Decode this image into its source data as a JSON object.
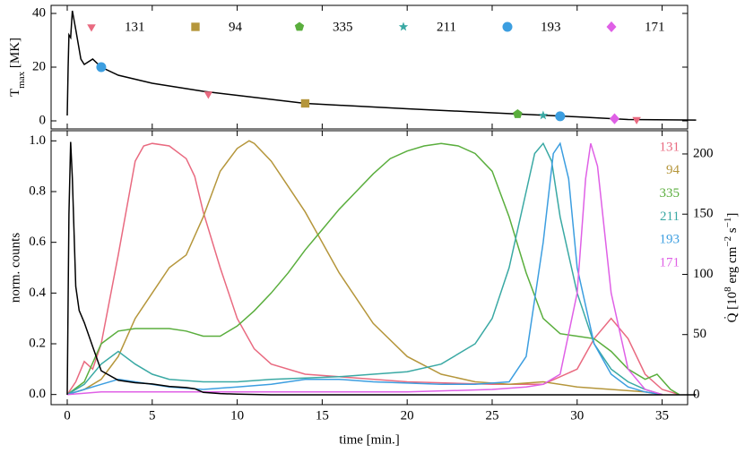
{
  "chart_data": [
    {
      "type": "line",
      "ylabel": {
        "main": "T",
        "sub": "max",
        "unit": " [MK]"
      },
      "xlim": [
        -0.95,
        36.5
      ],
      "ylim": [
        -3,
        43
      ],
      "yticks": [
        0,
        20,
        40
      ],
      "series": [
        {
          "name": "T_max",
          "color": "#000000",
          "x": [
            0,
            0.05,
            0.1,
            0.2,
            0.3,
            0.5,
            0.8,
            1,
            1.5,
            2,
            3,
            5,
            8,
            10,
            14,
            20,
            25,
            30,
            33,
            37
          ],
          "values": [
            2,
            20,
            32,
            31,
            41,
            34,
            23,
            21,
            23,
            20,
            17,
            14,
            11,
            9.5,
            6.5,
            4.5,
            3,
            1.5,
            0.5,
            0.3
          ]
        }
      ],
      "markers": [
        {
          "name": "131",
          "color": "#e96a80",
          "marker": "tri",
          "x": [
            8.3,
            33.5
          ],
          "values": [
            10,
            0.5
          ]
        },
        {
          "name": "94",
          "color": "#b5963b",
          "marker": "square",
          "x": [
            14
          ],
          "values": [
            6.5
          ]
        },
        {
          "name": "335",
          "color": "#5aae3d",
          "marker": "pentagon",
          "x": [
            26.5
          ],
          "values": [
            2.5
          ]
        },
        {
          "name": "211",
          "color": "#3aa9a4",
          "marker": "star",
          "x": [
            28
          ],
          "values": [
            2
          ]
        },
        {
          "name": "193",
          "color": "#3c9ee0",
          "marker": "circle",
          "x": [
            2,
            29
          ],
          "values": [
            20,
            1.7
          ]
        },
        {
          "name": "171",
          "color": "#df60e6",
          "marker": "diamond",
          "x": [
            32.2
          ],
          "values": [
            0.8
          ]
        }
      ]
    },
    {
      "type": "line",
      "xlabel": "time [min.]",
      "ylabel": "norm. counts",
      "y2label": {
        "main": "Q̇",
        "a": " [10",
        "b": "8",
        "c": " erg cm",
        "d": "−2",
        "e": " s",
        "f": "−1",
        "g": "]"
      },
      "xlim": [
        -0.95,
        36.5
      ],
      "xticks": [
        0,
        5,
        10,
        15,
        20,
        25,
        30,
        35
      ],
      "ylim": [
        -0.04,
        1.04
      ],
      "yticks": [
        {
          "value": 0,
          "label": "0.0"
        },
        0.2,
        0.4,
        0.6,
        0.8,
        {
          "value": 1,
          "label": "1.0"
        }
      ],
      "y2lim": [
        -8.2,
        219.3
      ],
      "y2ticks": [
        0,
        50,
        100,
        150,
        200
      ],
      "series": [
        {
          "name": "131",
          "color": "#e96a80",
          "x": [
            0,
            0.5,
            1,
            1.5,
            2,
            3,
            4,
            4.5,
            5,
            6,
            7,
            7.5,
            8,
            9,
            10,
            11,
            12,
            14,
            16,
            20,
            25,
            28,
            30,
            31,
            32,
            33,
            34,
            35,
            36
          ],
          "values": [
            0,
            0.05,
            0.13,
            0.1,
            0.2,
            0.55,
            0.92,
            0.98,
            0.99,
            0.98,
            0.93,
            0.86,
            0.72,
            0.5,
            0.3,
            0.18,
            0.12,
            0.08,
            0.07,
            0.05,
            0.04,
            0.04,
            0.1,
            0.22,
            0.3,
            0.22,
            0.08,
            0.02,
            0
          ]
        },
        {
          "name": "94",
          "color": "#b5963b",
          "x": [
            0,
            1,
            2,
            3,
            4,
            5,
            6,
            7,
            8,
            9,
            10,
            10.7,
            11,
            12,
            13,
            14,
            15,
            16,
            18,
            20,
            22,
            24,
            26,
            28,
            30,
            32,
            34,
            35
          ],
          "values": [
            0,
            0.02,
            0.06,
            0.15,
            0.3,
            0.4,
            0.5,
            0.55,
            0.7,
            0.88,
            0.97,
            1.0,
            0.99,
            0.92,
            0.82,
            0.72,
            0.6,
            0.48,
            0.28,
            0.15,
            0.08,
            0.05,
            0.04,
            0.05,
            0.03,
            0.02,
            0.01,
            0
          ]
        },
        {
          "name": "335",
          "color": "#5aae3d",
          "x": [
            0,
            1,
            2,
            3,
            4,
            6,
            7,
            8,
            9,
            10,
            11,
            12,
            13,
            14,
            15,
            16,
            17,
            18,
            19,
            20,
            21,
            22,
            23,
            24,
            25,
            26,
            27,
            28,
            29,
            30,
            31,
            32,
            33,
            34,
            34.7,
            35.5,
            36
          ],
          "values": [
            0,
            0.05,
            0.2,
            0.25,
            0.26,
            0.26,
            0.25,
            0.23,
            0.23,
            0.27,
            0.33,
            0.4,
            0.48,
            0.57,
            0.65,
            0.73,
            0.8,
            0.87,
            0.93,
            0.96,
            0.98,
            0.99,
            0.98,
            0.95,
            0.88,
            0.7,
            0.48,
            0.3,
            0.24,
            0.23,
            0.22,
            0.17,
            0.1,
            0.06,
            0.08,
            0.02,
            0
          ]
        },
        {
          "name": "211",
          "color": "#3aa9a4",
          "x": [
            0,
            1,
            2,
            3,
            4,
            5,
            6,
            8,
            10,
            12,
            14,
            16,
            18,
            20,
            22,
            24,
            25,
            26,
            27,
            27.5,
            28,
            28.5,
            29,
            30,
            31,
            32,
            33,
            34,
            35
          ],
          "values": [
            0,
            0.04,
            0.12,
            0.17,
            0.12,
            0.08,
            0.06,
            0.05,
            0.05,
            0.06,
            0.065,
            0.07,
            0.08,
            0.09,
            0.12,
            0.2,
            0.3,
            0.5,
            0.8,
            0.95,
            0.99,
            0.92,
            0.7,
            0.4,
            0.2,
            0.1,
            0.05,
            0.02,
            0
          ]
        },
        {
          "name": "193",
          "color": "#3c9ee0",
          "x": [
            0,
            1,
            2,
            3,
            4,
            6,
            8,
            10,
            12,
            14,
            16,
            18,
            20,
            22,
            24,
            26,
            27,
            28,
            28.6,
            29,
            29.5,
            30,
            31,
            32,
            33,
            34,
            35
          ],
          "values": [
            0,
            0.02,
            0.04,
            0.06,
            0.05,
            0.03,
            0.02,
            0.03,
            0.04,
            0.06,
            0.06,
            0.05,
            0.045,
            0.04,
            0.04,
            0.05,
            0.15,
            0.6,
            0.95,
            0.99,
            0.85,
            0.5,
            0.2,
            0.08,
            0.03,
            0.01,
            0
          ]
        },
        {
          "name": "171",
          "color": "#df60e6",
          "x": [
            0,
            2,
            4,
            10,
            20,
            25,
            27,
            28,
            29,
            30,
            30.5,
            30.8,
            31.2,
            32,
            33,
            34,
            35
          ],
          "values": [
            0,
            0.01,
            0.01,
            0.01,
            0.01,
            0.02,
            0.03,
            0.04,
            0.08,
            0.4,
            0.85,
            0.99,
            0.9,
            0.4,
            0.1,
            0.02,
            0
          ]
        },
        {
          "name": "Q",
          "color": "#000000",
          "axis": "y2",
          "x": [
            0,
            0.05,
            0.1,
            0.2,
            0.3,
            0.5,
            0.7,
            1,
            1.5,
            2,
            3,
            4,
            5,
            6,
            7,
            7.5,
            8,
            9,
            10,
            12,
            37
          ],
          "values": [
            0,
            80,
            150,
            210,
            180,
            90,
            70,
            60,
            40,
            20,
            12,
            10,
            9,
            7,
            6,
            5,
            2,
            1,
            0.5,
            0,
            0
          ]
        }
      ]
    }
  ]
}
